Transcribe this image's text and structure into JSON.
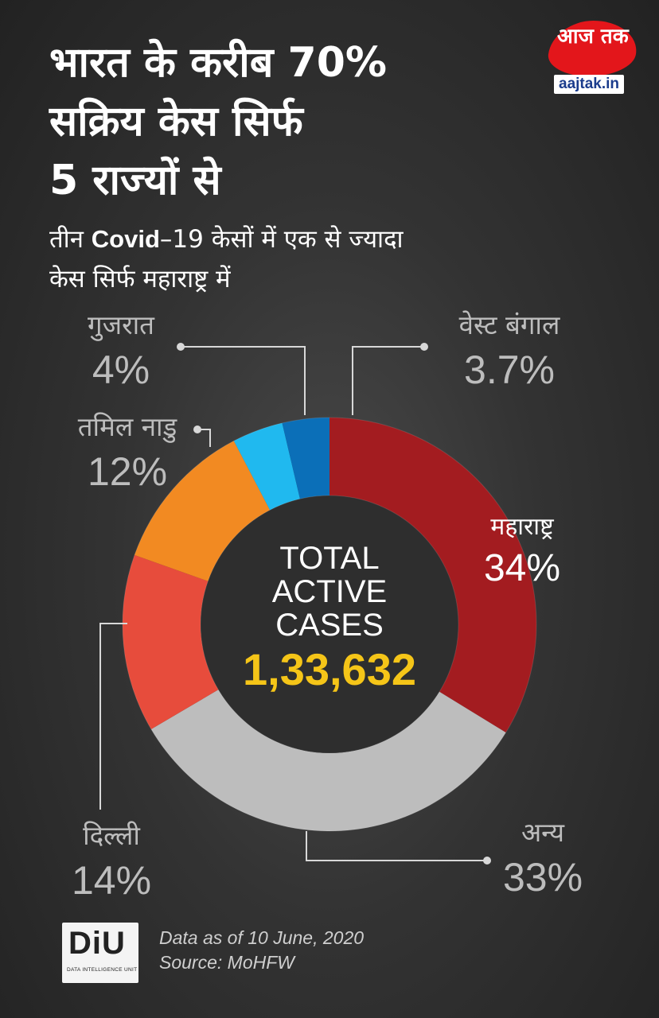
{
  "title_lines": [
    "भारत के करीब 70%",
    "सक्रिय केस सिर्फ",
    "5 राज्यों से"
  ],
  "subtitle": {
    "line1_before": "तीन ",
    "line1_bold": "Covid",
    "line1_after": "–19 केसों में एक से ज्यादा",
    "line2": "केस सिर्फ महाराष्ट्र में"
  },
  "brand": {
    "logo_text": "आज तक",
    "domain": "aajtak.in",
    "color": "#e3161b"
  },
  "chart_data": {
    "type": "pie",
    "variant": "donut",
    "start_angle_deg": 0,
    "direction": "clockwise",
    "slices": [
      {
        "label": "महाराष्ट्र",
        "value": 34,
        "display": "34%",
        "color": "#a31c20"
      },
      {
        "label": "अन्य",
        "value": 33,
        "display": "33%",
        "color": "#bdbdbd"
      },
      {
        "label": "दिल्ली",
        "value": 14,
        "display": "14%",
        "color": "#e74c3c"
      },
      {
        "label": "तमिल नाडु",
        "value": 12,
        "display": "12%",
        "color": "#f28a22"
      },
      {
        "label": "गुजरात",
        "value": 4,
        "display": "4%",
        "color": "#20b9ef"
      },
      {
        "label": "वेस्ट बंगाल",
        "value": 3.7,
        "display": "3.7%",
        "color": "#0b6fb8"
      }
    ],
    "center": {
      "line1": "TOTAL",
      "line2": "ACTIVE",
      "line3": "CASES",
      "value": "1,33,632",
      "value_color": "#f5c518"
    }
  },
  "footer": {
    "diu_logo": "DiU",
    "diu_caption": "DATA INTELLIGENCE UNIT",
    "date_note": "Data as of 10 June, 2020",
    "source": "Source: MoHFW"
  }
}
